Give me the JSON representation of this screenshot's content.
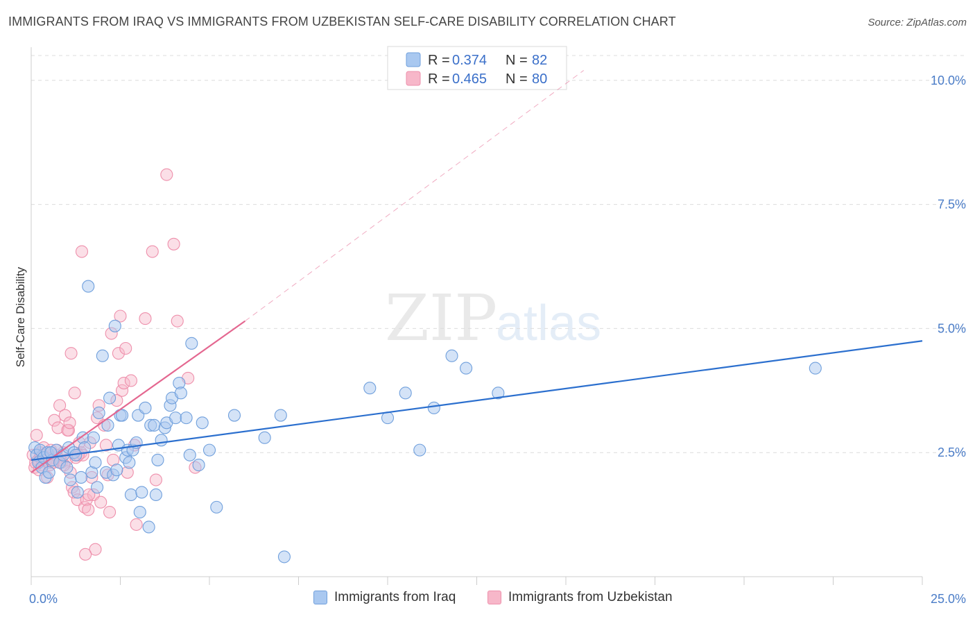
{
  "header": {
    "title": "IMMIGRANTS FROM IRAQ VS IMMIGRANTS FROM UZBEKISTAN SELF-CARE DISABILITY CORRELATION CHART",
    "source": "Source: ZipAtlas.com"
  },
  "watermark": {
    "zip": "ZIP",
    "atlas": "atlas"
  },
  "legend": {
    "rows": [
      {
        "r_label": "R =",
        "r_value": "0.374",
        "n_label": "N =",
        "n_value": "82"
      },
      {
        "r_label": "R =",
        "r_value": "0.465",
        "n_label": "N =",
        "n_value": "80"
      }
    ]
  },
  "bottom_legend": {
    "iraq": "Immigrants from Iraq",
    "uzbekistan": "Immigrants from Uzbekistan"
  },
  "colors": {
    "iraq_fill": "#a9c8f0",
    "iraq_stroke": "#6f9fdc",
    "iraq_line": "#2b6fce",
    "uzb_fill": "#f7b7c9",
    "uzb_stroke": "#ee8fab",
    "uzb_line": "#e46790",
    "axis_text": "#4a7cc7",
    "grid": "#dcdcdc"
  },
  "chart_data": {
    "type": "scatter",
    "xlabel": "",
    "ylabel": "Self-Care Disability",
    "xlim": [
      0,
      25
    ],
    "ylim": [
      0,
      10.5
    ],
    "x_tick_labels": [
      "0.0%",
      "25.0%"
    ],
    "y_ticks": [
      2.5,
      5.0,
      7.5,
      10.0
    ],
    "y_tick_labels": [
      "2.5%",
      "5.0%",
      "7.5%",
      "10.0%"
    ],
    "grid": true,
    "legend_position": "top-center",
    "series": [
      {
        "name": "Immigrants from Iraq",
        "R": 0.374,
        "N": 82,
        "trend": {
          "x": [
            0,
            25
          ],
          "y": [
            2.35,
            4.75
          ],
          "dashed_extension": false
        },
        "points": [
          [
            0.1,
            2.6
          ],
          [
            0.15,
            2.45
          ],
          [
            0.2,
            2.3
          ],
          [
            0.25,
            2.55
          ],
          [
            0.3,
            2.2
          ],
          [
            0.35,
            2.4
          ],
          [
            0.4,
            2.0
          ],
          [
            0.45,
            2.5
          ],
          [
            0.5,
            2.1
          ],
          [
            0.6,
            2.35
          ],
          [
            0.7,
            2.55
          ],
          [
            0.8,
            2.3
          ],
          [
            0.9,
            2.45
          ],
          [
            1.0,
            2.2
          ],
          [
            1.05,
            2.6
          ],
          [
            1.1,
            1.95
          ],
          [
            1.2,
            2.5
          ],
          [
            1.25,
            2.45
          ],
          [
            1.3,
            1.7
          ],
          [
            1.4,
            2.0
          ],
          [
            1.45,
            2.8
          ],
          [
            1.5,
            2.6
          ],
          [
            1.6,
            5.85
          ],
          [
            1.7,
            2.1
          ],
          [
            1.75,
            2.8
          ],
          [
            1.8,
            2.3
          ],
          [
            1.85,
            1.8
          ],
          [
            1.9,
            3.3
          ],
          [
            2.0,
            4.45
          ],
          [
            2.1,
            2.1
          ],
          [
            2.15,
            3.05
          ],
          [
            2.2,
            3.6
          ],
          [
            2.3,
            2.05
          ],
          [
            2.35,
            5.05
          ],
          [
            2.4,
            2.15
          ],
          [
            2.45,
            2.65
          ],
          [
            2.5,
            3.25
          ],
          [
            2.55,
            3.25
          ],
          [
            2.65,
            2.4
          ],
          [
            2.7,
            2.55
          ],
          [
            2.75,
            2.3
          ],
          [
            2.8,
            1.65
          ],
          [
            2.85,
            2.55
          ],
          [
            2.95,
            2.7
          ],
          [
            3.0,
            3.25
          ],
          [
            3.05,
            1.3
          ],
          [
            3.1,
            1.7
          ],
          [
            3.2,
            3.4
          ],
          [
            3.3,
            1.0
          ],
          [
            3.35,
            3.05
          ],
          [
            3.45,
            3.05
          ],
          [
            3.5,
            1.65
          ],
          [
            3.55,
            2.35
          ],
          [
            3.65,
            2.75
          ],
          [
            3.75,
            3.0
          ],
          [
            3.8,
            3.1
          ],
          [
            3.9,
            3.45
          ],
          [
            3.95,
            3.6
          ],
          [
            4.05,
            3.2
          ],
          [
            4.15,
            3.9
          ],
          [
            4.2,
            3.7
          ],
          [
            4.35,
            3.2
          ],
          [
            4.45,
            2.45
          ],
          [
            4.5,
            4.7
          ],
          [
            4.7,
            2.25
          ],
          [
            4.8,
            3.1
          ],
          [
            5.0,
            2.55
          ],
          [
            5.2,
            1.4
          ],
          [
            5.7,
            3.25
          ],
          [
            6.55,
            2.8
          ],
          [
            7.0,
            3.25
          ],
          [
            7.1,
            0.4
          ],
          [
            9.5,
            3.8
          ],
          [
            10.0,
            3.2
          ],
          [
            10.5,
            3.7
          ],
          [
            10.9,
            2.55
          ],
          [
            11.3,
            3.4
          ],
          [
            11.8,
            4.45
          ],
          [
            12.2,
            4.2
          ],
          [
            13.1,
            3.7
          ],
          [
            22.0,
            4.2
          ],
          [
            0.55,
            2.5
          ]
        ]
      },
      {
        "name": "Immigrants from Uzbekistan",
        "R": 0.465,
        "N": 80,
        "trend": {
          "x": [
            0,
            6
          ],
          "y": [
            2.1,
            5.15
          ],
          "dashed_extension": true,
          "dashed_to": [
            15.5,
            10.2
          ]
        },
        "points": [
          [
            0.05,
            2.45
          ],
          [
            0.1,
            2.2
          ],
          [
            0.15,
            2.85
          ],
          [
            0.2,
            2.35
          ],
          [
            0.25,
            2.5
          ],
          [
            0.3,
            2.25
          ],
          [
            0.35,
            2.6
          ],
          [
            0.4,
            2.4
          ],
          [
            0.45,
            2.0
          ],
          [
            0.5,
            2.3
          ],
          [
            0.55,
            2.55
          ],
          [
            0.6,
            2.4
          ],
          [
            0.65,
            3.15
          ],
          [
            0.7,
            2.45
          ],
          [
            0.75,
            3.0
          ],
          [
            0.8,
            3.45
          ],
          [
            0.85,
            2.3
          ],
          [
            0.9,
            2.5
          ],
          [
            0.95,
            3.25
          ],
          [
            1.0,
            2.35
          ],
          [
            1.05,
            2.95
          ],
          [
            1.1,
            2.1
          ],
          [
            1.15,
            1.8
          ],
          [
            1.2,
            1.7
          ],
          [
            1.25,
            2.4
          ],
          [
            1.3,
            1.55
          ],
          [
            1.35,
            2.7
          ],
          [
            1.4,
            2.5
          ],
          [
            1.45,
            2.45
          ],
          [
            1.5,
            1.4
          ],
          [
            1.55,
            1.55
          ],
          [
            1.6,
            1.35
          ],
          [
            1.65,
            2.7
          ],
          [
            1.7,
            2.0
          ],
          [
            1.75,
            1.65
          ],
          [
            1.8,
            0.55
          ],
          [
            1.85,
            3.2
          ],
          [
            1.9,
            3.45
          ],
          [
            1.95,
            1.5
          ],
          [
            2.05,
            3.05
          ],
          [
            2.1,
            2.65
          ],
          [
            2.2,
            1.3
          ],
          [
            2.25,
            4.9
          ],
          [
            2.3,
            2.35
          ],
          [
            2.4,
            3.55
          ],
          [
            2.45,
            4.5
          ],
          [
            2.5,
            5.25
          ],
          [
            2.55,
            3.75
          ],
          [
            2.6,
            3.9
          ],
          [
            2.65,
            4.6
          ],
          [
            2.7,
            2.1
          ],
          [
            2.8,
            3.95
          ],
          [
            2.9,
            2.65
          ],
          [
            2.95,
            1.05
          ],
          [
            3.2,
            5.2
          ],
          [
            3.4,
            6.55
          ],
          [
            3.5,
            1.95
          ],
          [
            3.8,
            8.1
          ],
          [
            4.0,
            6.7
          ],
          [
            4.1,
            5.15
          ],
          [
            4.4,
            4.0
          ],
          [
            4.6,
            2.2
          ],
          [
            0.12,
            2.3
          ],
          [
            0.22,
            2.15
          ],
          [
            0.32,
            2.45
          ],
          [
            0.42,
            2.35
          ],
          [
            0.52,
            2.25
          ],
          [
            0.62,
            2.3
          ],
          [
            0.72,
            2.55
          ],
          [
            0.82,
            2.35
          ],
          [
            0.92,
            2.25
          ],
          [
            1.02,
            2.95
          ],
          [
            1.12,
            4.5
          ],
          [
            1.22,
            3.7
          ],
          [
            1.32,
            2.45
          ],
          [
            1.42,
            6.55
          ],
          [
            1.52,
            0.45
          ],
          [
            1.62,
            1.65
          ],
          [
            2.15,
            2.05
          ],
          [
            1.08,
            3.1
          ]
        ]
      }
    ]
  }
}
